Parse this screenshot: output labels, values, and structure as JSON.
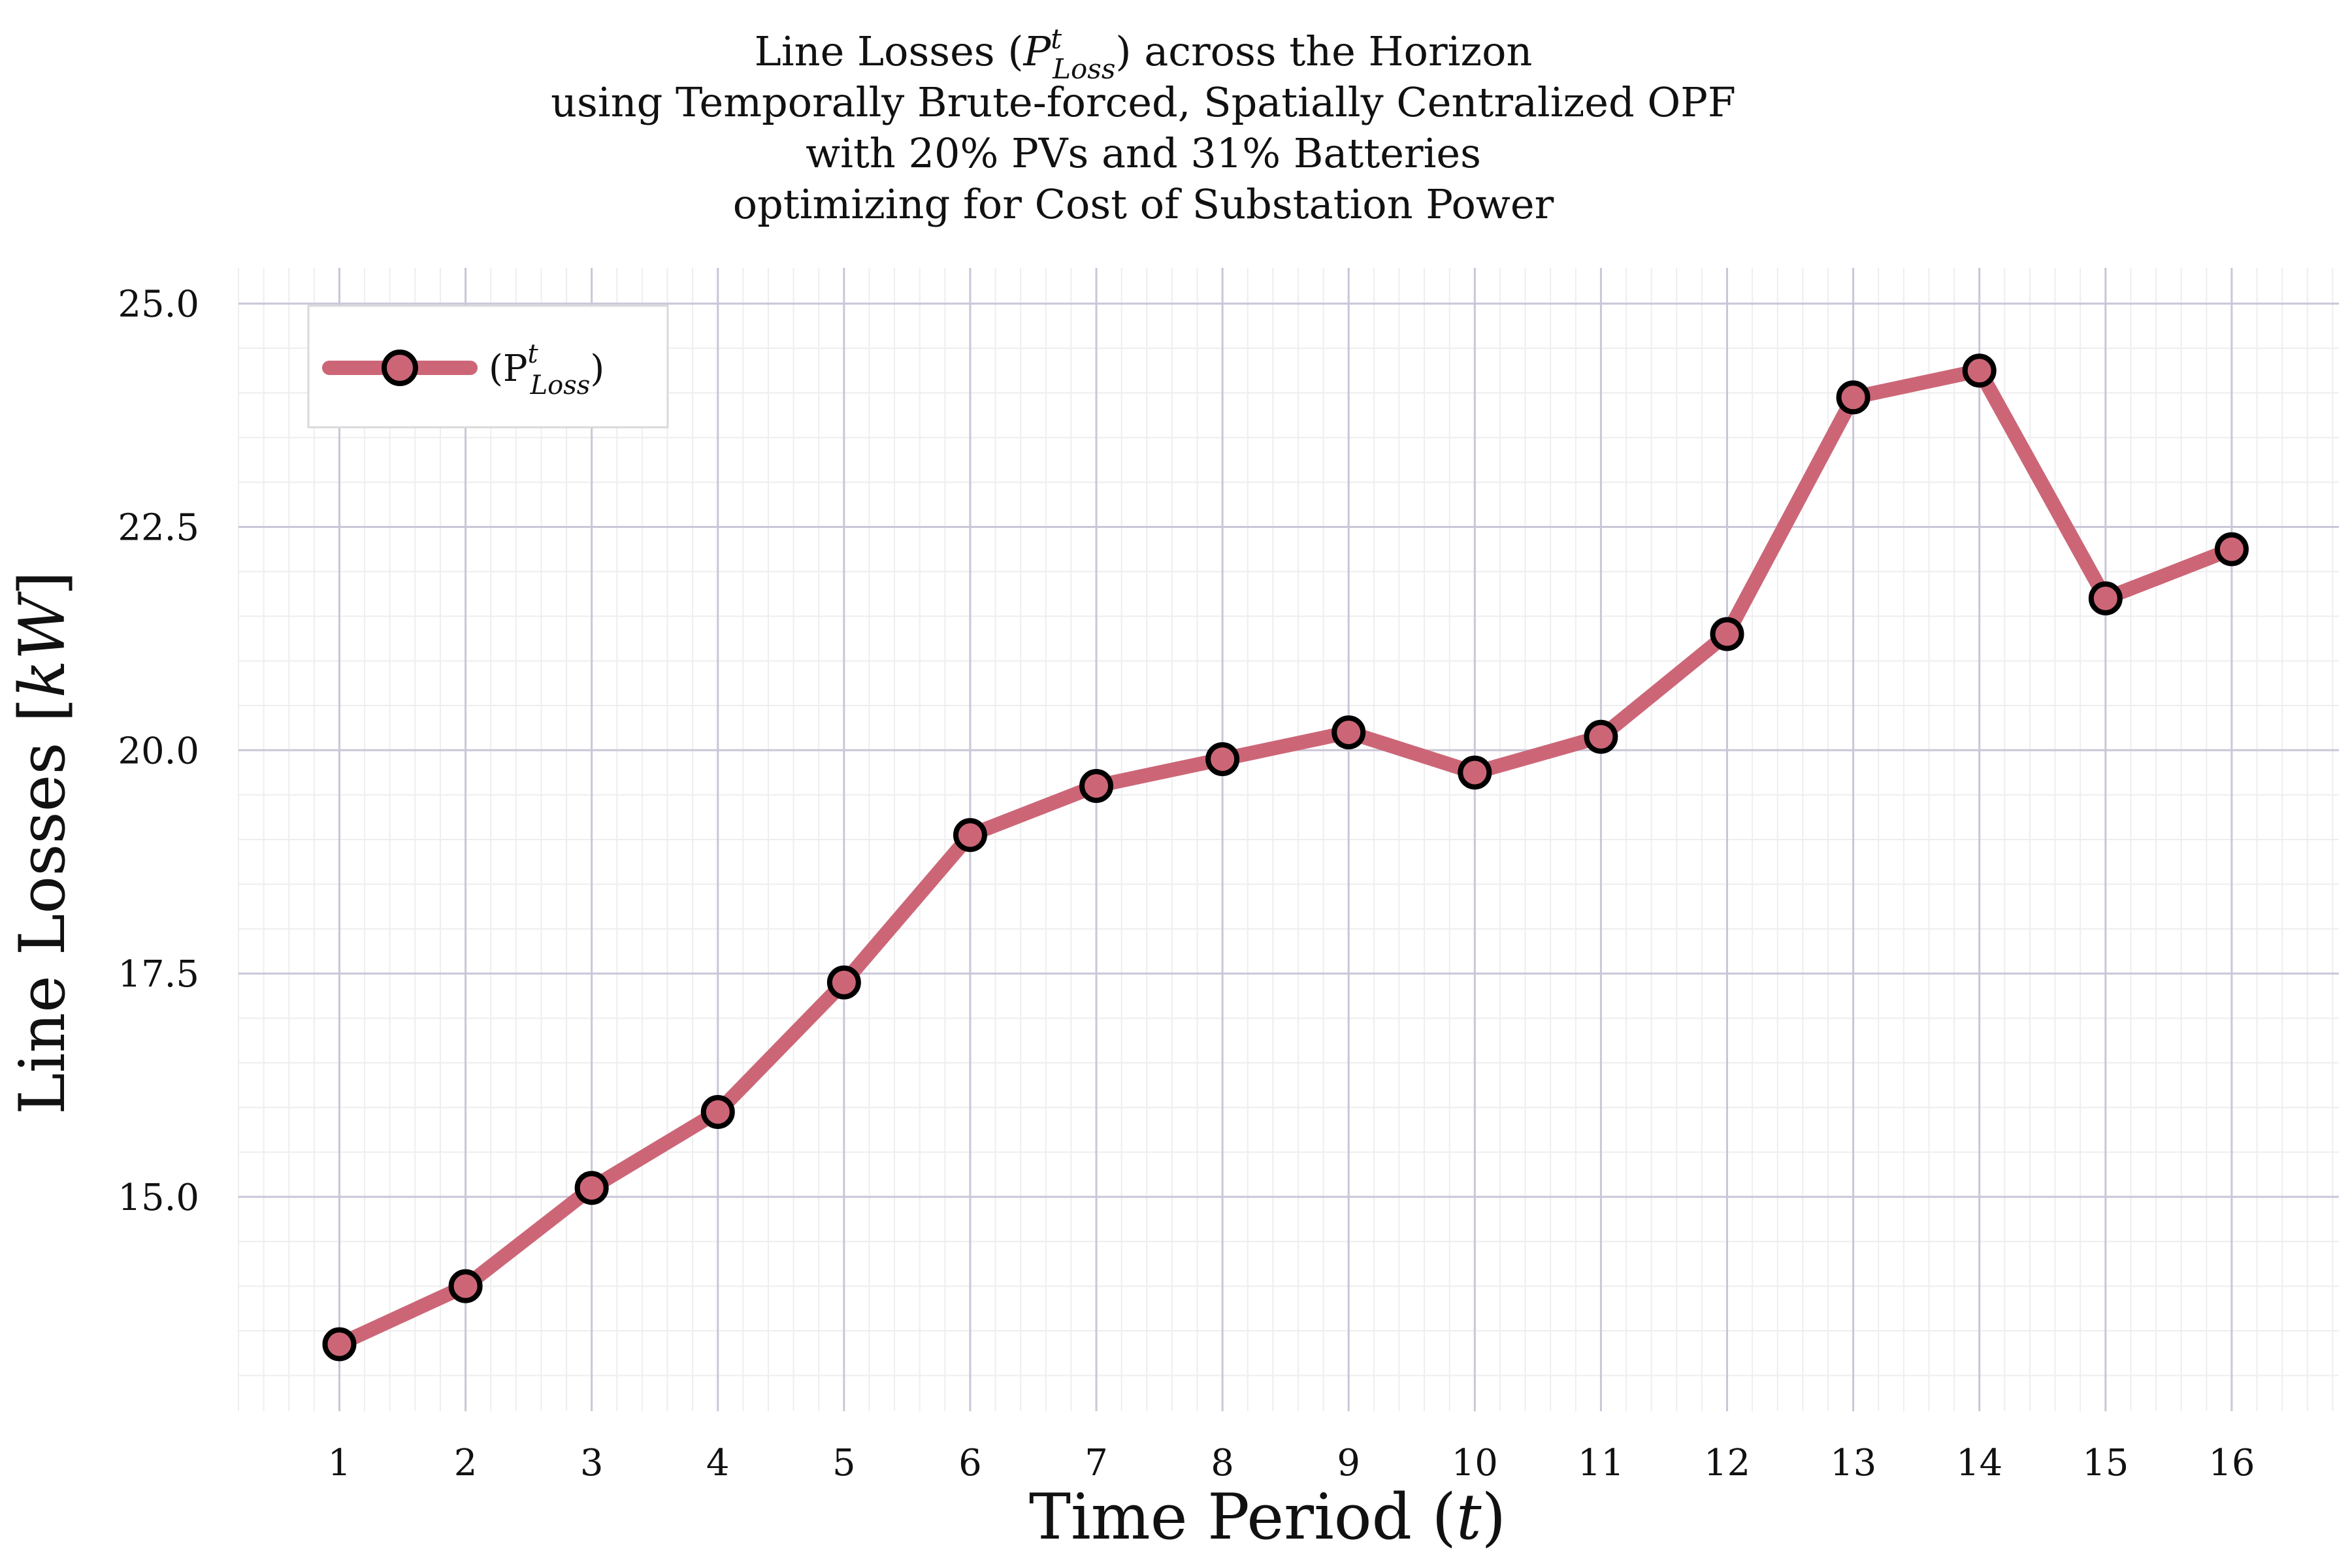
{
  "chart_data": {
    "type": "line",
    "title": [
      "Line Losses (P",
      "using Temporally Brute-forced, Spatially Centralized OPF",
      "with 20% PVs and 31% Batteries",
      "optimizing for Cost of Substation Power"
    ],
    "title_math": {
      "base": "P",
      "sup": "t",
      "sub": "Loss",
      "suffix": ") across the Horizon"
    },
    "xlabel": "Time Period (t)",
    "ylabel": "Line Losses [kW]",
    "x": [
      1,
      2,
      3,
      4,
      5,
      6,
      7,
      8,
      9,
      10,
      11,
      12,
      13,
      14,
      15,
      16
    ],
    "x_tick_labels": [
      "1",
      "2",
      "3",
      "4",
      "5",
      "6",
      "7",
      "8",
      "9",
      "10",
      "11",
      "12",
      "13",
      "14",
      "15",
      "16"
    ],
    "y_ticks": [
      15.0,
      17.5,
      20.0,
      22.5,
      25.0
    ],
    "y_tick_labels": [
      "15.0",
      "17.5",
      "20.0",
      "22.5",
      "25.0"
    ],
    "xlim": [
      0.2,
      16.85
    ],
    "ylim": [
      12.6,
      25.4
    ],
    "grid": true,
    "legend_position": "top-left",
    "series": [
      {
        "name": "(P_Loss^t)",
        "legend_label": {
          "prefix": "(P",
          "sup": "t",
          "sub": "Loss",
          "suffix": ")"
        },
        "color": "#cc6677",
        "marker_edge": "#000000",
        "values": [
          13.35,
          14.0,
          15.1,
          15.95,
          17.4,
          19.05,
          19.6,
          19.9,
          20.2,
          19.75,
          20.15,
          21.3,
          23.95,
          24.25,
          21.7,
          22.25
        ]
      }
    ]
  }
}
